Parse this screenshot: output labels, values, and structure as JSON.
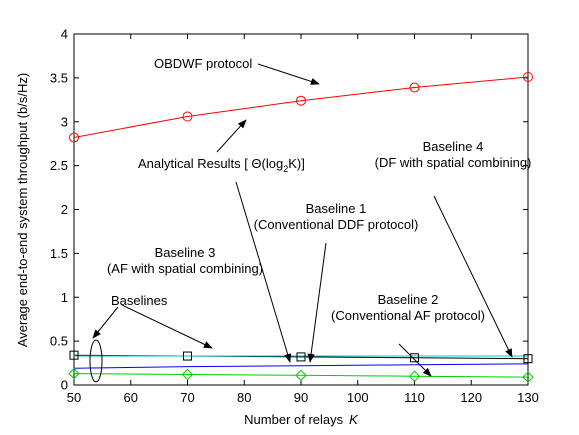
{
  "chart_data": {
    "type": "line",
    "title": "",
    "xlabel": "Number of relays",
    "xlabel_symbol": "K",
    "ylabel": "Average end-to-end system throughput (b/s/Hz)",
    "xlim": [
      50,
      130
    ],
    "ylim": [
      0,
      4
    ],
    "xticks": [
      "50",
      "60",
      "70",
      "80",
      "90",
      "100",
      "110",
      "120",
      "130"
    ],
    "yticks": [
      "0",
      "0.5",
      "1",
      "1.5",
      "2",
      "2.5",
      "3",
      "3.5",
      "4"
    ],
    "grid": false,
    "x": [
      50,
      70,
      90,
      110,
      130
    ],
    "series": [
      {
        "name": "OBDWF protocol",
        "color": "#ff0000",
        "marker": "circle",
        "values": [
          2.82,
          3.06,
          3.24,
          3.39,
          3.51
        ]
      },
      {
        "name": "Baseline 4 (DF with spatial combining)",
        "color": "#000000",
        "marker": "square",
        "values": [
          0.34,
          0.33,
          0.32,
          0.31,
          0.3
        ]
      },
      {
        "name": "Baseline 1 (Conventional DDF protocol)",
        "color": "#00c8c8",
        "marker": "none",
        "values": [
          0.33,
          0.33,
          0.33,
          0.33,
          0.33
        ]
      },
      {
        "name": "Baseline 3 (AF with spatial combining)",
        "color": "#0000ff",
        "marker": "none",
        "values": [
          0.19,
          0.21,
          0.22,
          0.23,
          0.24
        ]
      },
      {
        "name": "Baseline 2 (Conventional AF protocol)",
        "color": "#00cc00",
        "marker": "diamond",
        "values": [
          0.13,
          0.12,
          0.11,
          0.1,
          0.09
        ]
      }
    ],
    "annotations": {
      "obdwf": "OBDWF protocol",
      "analytical_prefix": "Analytical Results [ Θ(log",
      "analytical_sub": "2",
      "analytical_suffix": "K)]",
      "b4_line1": "Baseline 4",
      "b4_line2": "(DF with spatial combining)",
      "b1_line1": "Baseline 1",
      "b1_line2": "(Conventional DDF protocol)",
      "b3_line1": "Baseline 3",
      "b3_line2": "(AF with spatial combining)",
      "b2_line1": "Baseline 2",
      "b2_line2": "(Conventional AF protocol)",
      "baselines": "Baselines"
    }
  }
}
